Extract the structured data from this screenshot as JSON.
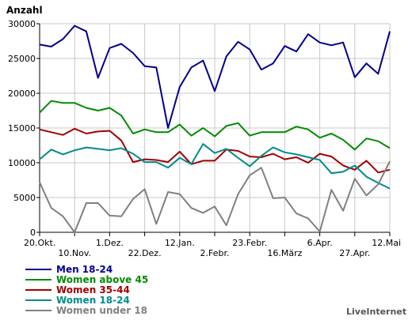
{
  "chart_data": {
    "type": "line",
    "title": "",
    "ylabel": "Anzahl",
    "xlabel": "",
    "ylim": [
      0,
      30000
    ],
    "yticks": [
      0,
      5000,
      10000,
      15000,
      20000,
      25000,
      30000
    ],
    "ytick_labels": [
      "0",
      "5000",
      "10000",
      "15000",
      "20000",
      "25000",
      "30000"
    ],
    "grid": true,
    "legend_position": "bottom-left",
    "x_range": [
      "20.Okt.",
      "12.Mai"
    ],
    "x_tick_labels_upper": [
      "20.Okt.",
      "1.Dez.",
      "12.Jan.",
      "23.Febr.",
      "6.Apr.",
      "12.Mai"
    ],
    "x_tick_labels_lower": [
      "10.Nov.",
      "22.Dez.",
      "2.Febr.",
      "16.März",
      "27.Apr."
    ],
    "series": [
      {
        "name": "Men 18-24",
        "color": "#00008b",
        "values": [
          27000,
          26700,
          27800,
          29700,
          28900,
          22200,
          26500,
          27100,
          25800,
          23900,
          23700,
          15000,
          20900,
          23700,
          24700,
          20300,
          25300,
          27400,
          26300,
          23400,
          24300,
          26800,
          26000,
          28500,
          27300,
          26900,
          27300,
          22300,
          24300,
          22800,
          28900
        ]
      },
      {
        "name": "Women above 45",
        "color": "#008b00",
        "values": [
          17200,
          18900,
          18600,
          18600,
          17900,
          17500,
          17900,
          16800,
          14200,
          14800,
          14400,
          14400,
          15500,
          13900,
          15000,
          13800,
          15300,
          15700,
          13900,
          14400,
          14400,
          14400,
          15200,
          14800,
          13600,
          14200,
          13300,
          11900,
          13500,
          13100,
          12100
        ]
      },
      {
        "name": "Women 35-44",
        "color": "#a00000",
        "values": [
          14800,
          14400,
          14000,
          14900,
          14200,
          14500,
          14600,
          13200,
          10100,
          10500,
          10400,
          10100,
          11600,
          9800,
          10300,
          10300,
          11900,
          11700,
          10900,
          10800,
          11300,
          10500,
          10800,
          10000,
          11300,
          10900,
          9600,
          9000,
          10300,
          8600,
          9000
        ]
      },
      {
        "name": "Women 18-24",
        "color": "#008b8b",
        "values": [
          10500,
          11900,
          11200,
          11800,
          12200,
          12000,
          11800,
          12100,
          11300,
          10100,
          10100,
          9300,
          10700,
          9800,
          12700,
          11400,
          12000,
          10700,
          9500,
          11000,
          12200,
          11500,
          11200,
          10800,
          10400,
          8500,
          8700,
          9600,
          8000,
          7100,
          6300
        ]
      },
      {
        "name": "Women under 18",
        "color": "#808080",
        "values": [
          7200,
          3500,
          2300,
          0,
          4200,
          4200,
          2400,
          2300,
          4800,
          6200,
          1200,
          5800,
          5500,
          3500,
          2800,
          3700,
          1000,
          5500,
          8200,
          9300,
          4900,
          5000,
          2700,
          2000,
          100,
          6100,
          3100,
          7700,
          5300,
          6900,
          10200
        ]
      }
    ]
  },
  "watermark": "LiveInternet"
}
